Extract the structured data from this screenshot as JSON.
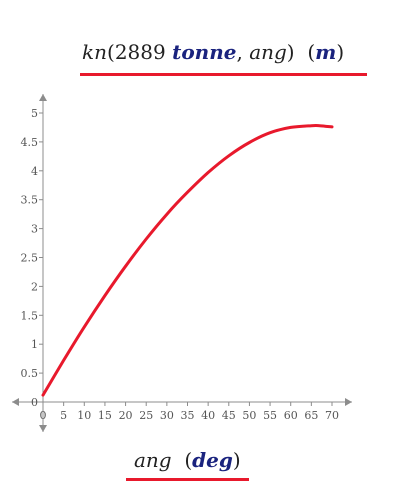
{
  "chart_data": {
    "type": "line",
    "title": "",
    "ylabel": {
      "func": "kn",
      "open": "(",
      "number": "2889",
      "unit1": "tonne",
      "sep": ", ",
      "arg": "ang",
      "close": ")",
      "unit_open": "(",
      "unit": "m",
      "unit_close": ")"
    },
    "xlabel": {
      "var": "ang",
      "unit_open": "(",
      "unit": "deg",
      "unit_close": ")"
    },
    "xlim": [
      0,
      70
    ],
    "ylim": [
      0,
      5
    ],
    "xticks": [
      0,
      5,
      10,
      15,
      20,
      25,
      30,
      35,
      40,
      45,
      50,
      55,
      60,
      65,
      70
    ],
    "yticks": [
      0,
      0.5,
      1,
      1.5,
      2,
      2.5,
      3,
      3.5,
      4,
      4.5,
      5
    ],
    "grid": false,
    "series": [
      {
        "color": "#e8192c",
        "x": [
          0,
          5,
          10,
          15,
          20,
          25,
          30,
          35,
          40,
          45,
          50,
          55,
          60,
          65,
          67,
          70
        ],
        "y": [
          0.12,
          0.72,
          1.3,
          1.84,
          2.35,
          2.82,
          3.25,
          3.63,
          3.97,
          4.26,
          4.49,
          4.66,
          4.75,
          4.78,
          4.78,
          4.76
        ]
      }
    ]
  }
}
